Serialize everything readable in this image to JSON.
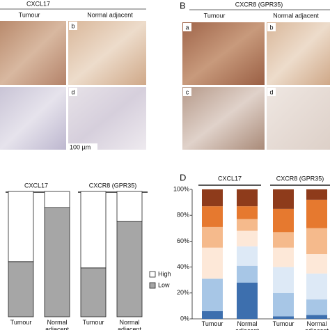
{
  "panel_a": {
    "header": "CXCL17",
    "columns": [
      "Tumour",
      "Normal adjacent"
    ],
    "image_labels": [
      "b",
      "d"
    ],
    "scale_bar": "100 µm"
  },
  "panel_b": {
    "letter": "B",
    "header": "CXCR8 (GPR35)",
    "columns": [
      "Tumour",
      "Normal adjacent"
    ],
    "image_labels": [
      "a",
      "b",
      "c",
      "d"
    ]
  },
  "chart_data": [
    {
      "type": "stacked_bar",
      "groups": [
        "CXCL17",
        "CXCR8 (GPR35)"
      ],
      "categories": [
        "Tumour",
        "Normal adjacent",
        "Tumour",
        "Normal adjacent"
      ],
      "series": [
        {
          "name": "Low",
          "color": "#a6a6a6",
          "values": [
            44,
            87,
            39,
            76
          ]
        },
        {
          "name": "High",
          "color": "#ffffff",
          "values": [
            56,
            13,
            61,
            24
          ]
        }
      ],
      "legend": "right"
    },
    {
      "type": "stacked_bar",
      "letter": "D",
      "groups": [
        "CXCL17",
        "CXCR8 (GPR35)"
      ],
      "categories": [
        "Tumour",
        "Normal adjacent",
        "Tumour",
        "Normal adjacent"
      ],
      "ylim": [
        0,
        100
      ],
      "yticks": [
        {
          "value": 0,
          "label": "0%"
        },
        {
          "value": 20,
          "label": "20%"
        },
        {
          "value": 40,
          "label": "40%"
        },
        {
          "value": 60,
          "label": "60%"
        },
        {
          "value": 80,
          "label": "80%"
        },
        {
          "value": 100,
          "label": "100%"
        }
      ],
      "series": [
        {
          "color": "#3d6fae",
          "values": [
            6,
            28,
            2,
            3
          ]
        },
        {
          "color": "#a7c6e6",
          "values": [
            25,
            13,
            18,
            12
          ]
        },
        {
          "color": "#dde9f6",
          "values": [
            0,
            15,
            20,
            20
          ]
        },
        {
          "color": "#fde8d8",
          "values": [
            24,
            12,
            15,
            15
          ]
        },
        {
          "color": "#f5ba8c",
          "values": [
            16,
            9,
            12,
            20
          ]
        },
        {
          "color": "#e6792f",
          "values": [
            16,
            10,
            18,
            22
          ]
        },
        {
          "color": "#8e3b1b",
          "values": [
            13,
            13,
            15,
            8
          ]
        }
      ]
    }
  ]
}
